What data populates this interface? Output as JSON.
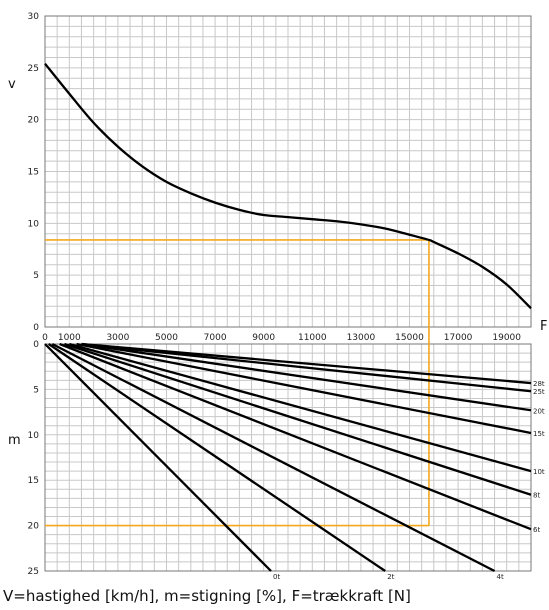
{
  "caption": "V=hastighed [km/h], m=stigning [%], F=trækkraft [N]",
  "chart_data": [
    {
      "type": "line",
      "title": "",
      "ylabel": "v",
      "xlabel": "F",
      "xlim": [
        0,
        20000
      ],
      "ylim": [
        0,
        30
      ],
      "x_ticks": [
        "0",
        "1000",
        "3000",
        "5000",
        "7000",
        "9000",
        "11000",
        "13000",
        "15000",
        "17000",
        "19000"
      ],
      "y_ticks": [
        "0",
        "5",
        "10",
        "15",
        "20",
        "25",
        "30"
      ],
      "grid": true,
      "series": [
        {
          "x": [
            0,
            1000,
            2000,
            3000,
            4000,
            5000,
            6000,
            7000,
            8000,
            9000,
            10000,
            11000,
            12000,
            13000,
            14000,
            15000,
            15800,
            16000,
            17000,
            18000,
            19000,
            20000
          ],
          "y": [
            25.4,
            22.5,
            19.7,
            17.4,
            15.5,
            14.0,
            12.9,
            12.0,
            11.3,
            10.8,
            10.6,
            10.4,
            10.2,
            9.9,
            9.5,
            8.9,
            8.4,
            8.2,
            7.1,
            5.8,
            4.1,
            1.8
          ]
        }
      ],
      "guide": {
        "F": 15800,
        "v": 8.4
      }
    },
    {
      "type": "line",
      "title": "",
      "ylabel": "m",
      "xlim": [
        0,
        20000
      ],
      "ylim": [
        0,
        25
      ],
      "y_inverted": true,
      "y_ticks": [
        "0",
        "5",
        "10",
        "15",
        "20",
        "25"
      ],
      "grid": true,
      "series": [
        {
          "name": "28t",
          "x": [
            1500,
            20000
          ],
          "y": [
            0,
            4.3
          ]
        },
        {
          "name": "25t",
          "x": [
            1500,
            20000
          ],
          "y": [
            0,
            5.2
          ]
        },
        {
          "name": "20t",
          "x": [
            1500,
            20000
          ],
          "y": [
            0,
            7.3
          ]
        },
        {
          "name": "15t",
          "x": [
            1300,
            20000
          ],
          "y": [
            0,
            9.8
          ]
        },
        {
          "name": "10t",
          "x": [
            1000,
            20000
          ],
          "y": [
            0,
            14.0
          ]
        },
        {
          "name": "8t",
          "x": [
            800,
            20000
          ],
          "y": [
            0,
            16.6
          ]
        },
        {
          "name": "6t",
          "x": [
            600,
            20000
          ],
          "y": [
            0,
            20.4
          ]
        },
        {
          "name": "4t",
          "x": [
            300,
            18500
          ],
          "y": [
            0,
            25
          ]
        },
        {
          "name": "2t",
          "x": [
            150,
            14000
          ],
          "y": [
            0,
            25
          ]
        },
        {
          "name": "0t",
          "x": [
            0,
            9300
          ],
          "y": [
            0,
            25
          ]
        }
      ],
      "guide": {
        "F": 15800,
        "m": 20
      }
    }
  ],
  "colors": {
    "curve": "#000000",
    "grid": "#c8c8c8",
    "guide": "#f4a81d"
  }
}
